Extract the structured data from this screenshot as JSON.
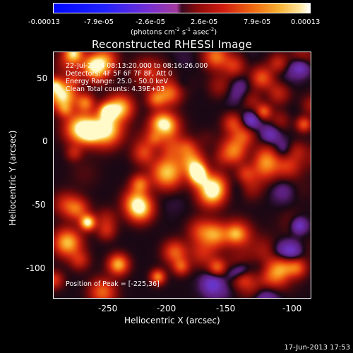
{
  "chart_data": {
    "type": "heatmap",
    "title": "Reconstructed RHESSI Image",
    "xlabel": "Heliocentric X (arcsec)",
    "ylabel": "Heliocentric Y (arcsec)",
    "xlim": [
      -290,
      -98
    ],
    "ylim": [
      -125,
      70
    ],
    "x_ticks": [
      "-250",
      "-200",
      "-150",
      "-100"
    ],
    "y_ticks": [
      "50",
      "0",
      "-50",
      "-100"
    ],
    "colorbar": {
      "ticks": [
        "-0.00013",
        "-7.9e-05",
        "-2.6e-05",
        "2.6e-05",
        "7.9e-05",
        "0.00013"
      ],
      "units_main": "(photons cm",
      "units_exp1": "-2",
      "units_mid": " s",
      "units_exp2": "-1",
      "units_end": " asec",
      "units_exp3": "-2",
      "units_close": ")"
    },
    "info_lines": [
      "22-Jul-2004 08:13:20.000 to 08:16:26.000",
      "Detectors: 4F 5F 6F 7F 8F, Att 0",
      "Energy Range: 25.0 - 50.0 keV",
      "Clean     Total counts: 4.39E+03"
    ],
    "peak_text": "Position of Peak = [-225,36]",
    "colors": {
      "negative": "#2a2aff",
      "neutral": "#6a2a9a",
      "dark": "#1a0a14",
      "positive": "#e04010",
      "peak": "#fff6a0"
    }
  },
  "timestamp": "17-Jun-2013 17:53"
}
